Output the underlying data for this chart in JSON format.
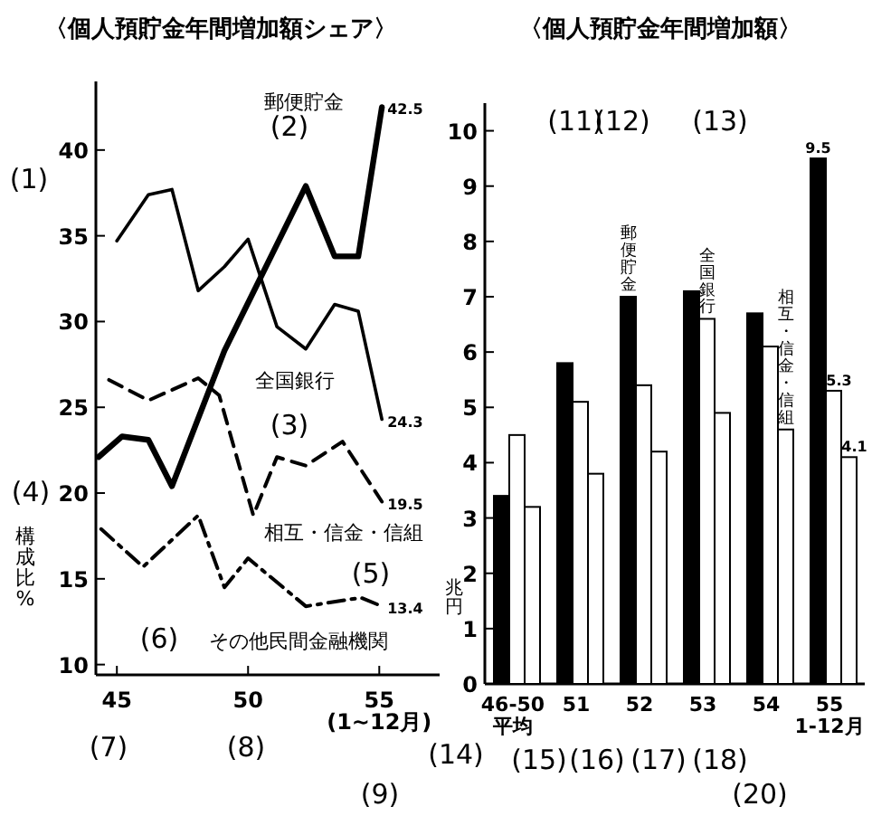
{
  "chart_data": [
    {
      "type": "line",
      "title": "〈個人預貯金年間増加額シェア〉",
      "ylabel": "構成比%",
      "xlim": [
        44.2,
        57.3
      ],
      "ylim": [
        9.4,
        44
      ],
      "xticks": [
        45,
        50,
        {
          "value": 55,
          "label": "55\n(1~12月)"
        }
      ],
      "yticks": [
        10,
        15,
        20,
        25,
        30,
        35,
        40
      ],
      "annotations": [
        "(1)",
        "(2)",
        "(3)",
        "(4)",
        "(5)",
        "(6)",
        "(7)",
        "(8)",
        "(9)"
      ],
      "series": [
        {
          "name": "郵便貯金",
          "color": "#000000",
          "line_style": "solid",
          "x": [
            44.3,
            45.2,
            46.2,
            47.1,
            49.1,
            52.2,
            53.3,
            54.2,
            55.1
          ],
          "values": [
            22.1,
            23.3,
            23.1,
            20.4,
            28.3,
            37.9,
            33.8,
            33.8,
            42.5
          ],
          "value_labels": [
            null,
            null,
            null,
            null,
            null,
            null,
            null,
            null,
            "42.5"
          ]
        },
        {
          "name": "全国銀行",
          "color": "#000000",
          "line_style": "solid",
          "x": [
            45,
            46.2,
            47.1,
            48.1,
            49.1,
            50,
            51.1,
            52.2,
            53.3,
            54.2,
            55.1
          ],
          "values": [
            34.7,
            37.4,
            37.7,
            31.8,
            33.2,
            34.8,
            29.7,
            28.4,
            31,
            30.6,
            24.3
          ],
          "value_labels": [
            null,
            null,
            null,
            null,
            null,
            null,
            null,
            null,
            null,
            null,
            "24.3"
          ]
        },
        {
          "name": "相互・信金・信組",
          "color": "#000000",
          "line_style": "dashed",
          "x": [
            44.7,
            46.2,
            48.1,
            48.9,
            50.2,
            51.1,
            52.2,
            53.6,
            55.1
          ],
          "values": [
            26.6,
            25.4,
            26.7,
            25.7,
            18.7,
            22.1,
            21.6,
            23.0,
            19.5
          ],
          "value_labels": [
            null,
            null,
            null,
            null,
            null,
            null,
            null,
            null,
            "19.5"
          ]
        },
        {
          "name": "その他民間金融機関",
          "color": "#000000",
          "line_style": "dashdot",
          "x": [
            44.4,
            46,
            48.1,
            49.1,
            50,
            52.2,
            54.3,
            55.1
          ],
          "values": [
            17.9,
            15.7,
            18.7,
            14.5,
            16.2,
            13.4,
            13.9,
            13.4
          ],
          "value_labels": [
            null,
            null,
            null,
            null,
            null,
            null,
            null,
            "13.4"
          ]
        }
      ]
    },
    {
      "type": "bar",
      "title": "〈個人預貯金年間増加額〉",
      "ylabel": "兆円",
      "categories": [
        "46-50\n平均",
        "51",
        "52",
        "53",
        "54",
        "55\n1-12月"
      ],
      "ylim": [
        0,
        10.5
      ],
      "yticks": [
        0,
        1,
        2,
        3,
        4,
        5,
        6,
        7,
        8,
        9,
        10
      ],
      "annotations": [
        "(11)",
        "(12)",
        "(13)",
        "(14)",
        "(15)",
        "(16)",
        "(17)",
        "(18)",
        "(20)"
      ],
      "series": [
        {
          "name": "郵便貯金",
          "color": "#000000",
          "values": [
            3.4,
            5.8,
            7.0,
            7.1,
            6.7,
            9.5
          ],
          "value_labels": [
            null,
            null,
            null,
            null,
            null,
            "9.5"
          ]
        },
        {
          "name": "全国銀行",
          "color": "#ffffff",
          "values": [
            4.5,
            5.1,
            5.4,
            6.6,
            6.1,
            5.3
          ],
          "value_labels": [
            null,
            null,
            null,
            null,
            null,
            "5.3"
          ]
        },
        {
          "name": "相互・信金・信組",
          "color": "#ffffff",
          "values": [
            3.2,
            3.8,
            4.2,
            4.9,
            4.6,
            4.1
          ],
          "value_labels": [
            null,
            null,
            null,
            null,
            null,
            "4.1"
          ]
        }
      ]
    }
  ]
}
